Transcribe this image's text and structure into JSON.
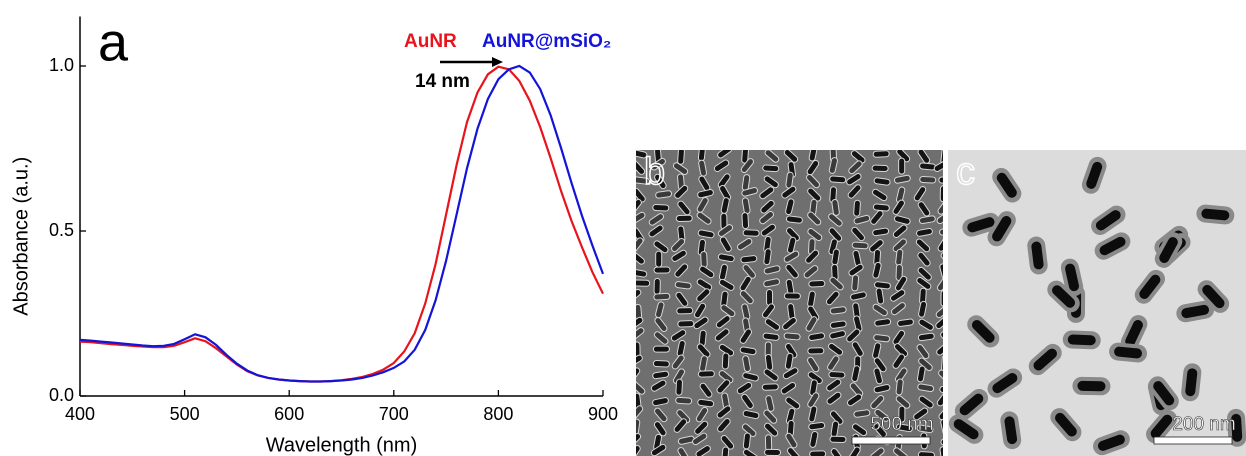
{
  "chart_data": {
    "type": "line",
    "panel_label": "a",
    "xlabel": "Wavelength (nm)",
    "ylabel": "Absorbance (a.u.)",
    "shift_label": "14 nm",
    "xlim": [
      400,
      900
    ],
    "ylim": [
      0,
      1.15
    ],
    "xticks": [
      400,
      500,
      600,
      700,
      800,
      900
    ],
    "yticks": [
      {
        "value": 0,
        "label": "0.0"
      },
      0.5,
      {
        "value": 1,
        "label": "1.0"
      }
    ],
    "x": [
      400,
      410,
      420,
      430,
      440,
      450,
      460,
      470,
      480,
      490,
      500,
      510,
      520,
      530,
      540,
      550,
      560,
      570,
      580,
      590,
      600,
      610,
      620,
      630,
      640,
      650,
      660,
      670,
      680,
      690,
      700,
      710,
      720,
      730,
      740,
      750,
      760,
      770,
      780,
      790,
      800,
      810,
      820,
      830,
      840,
      850,
      860,
      870,
      880,
      890,
      900
    ],
    "series": [
      {
        "name": "AuNR",
        "color": "#e8141c",
        "values": [
          0.165,
          0.163,
          0.16,
          0.157,
          0.155,
          0.152,
          0.15,
          0.148,
          0.148,
          0.152,
          0.163,
          0.175,
          0.166,
          0.145,
          0.12,
          0.095,
          0.075,
          0.062,
          0.055,
          0.05,
          0.047,
          0.045,
          0.044,
          0.044,
          0.045,
          0.048,
          0.052,
          0.058,
          0.067,
          0.08,
          0.1,
          0.135,
          0.19,
          0.28,
          0.4,
          0.55,
          0.7,
          0.83,
          0.92,
          0.975,
          0.998,
          0.99,
          0.955,
          0.895,
          0.815,
          0.72,
          0.62,
          0.53,
          0.45,
          0.375,
          0.31
        ]
      },
      {
        "name": "AuNR@mSiO₂",
        "color": "#1414d8",
        "values": [
          0.17,
          0.168,
          0.165,
          0.162,
          0.159,
          0.156,
          0.153,
          0.151,
          0.152,
          0.158,
          0.172,
          0.187,
          0.178,
          0.155,
          0.125,
          0.098,
          0.077,
          0.063,
          0.055,
          0.05,
          0.047,
          0.045,
          0.044,
          0.044,
          0.045,
          0.047,
          0.05,
          0.055,
          0.062,
          0.072,
          0.085,
          0.105,
          0.14,
          0.2,
          0.29,
          0.41,
          0.55,
          0.69,
          0.81,
          0.9,
          0.96,
          0.99,
          1.0,
          0.98,
          0.93,
          0.85,
          0.75,
          0.645,
          0.545,
          0.455,
          0.37
        ]
      }
    ]
  },
  "panels": [
    {
      "label": "b",
      "scale_bar": "500 nm"
    },
    {
      "label": "c",
      "scale_bar": "200 nm"
    }
  ]
}
